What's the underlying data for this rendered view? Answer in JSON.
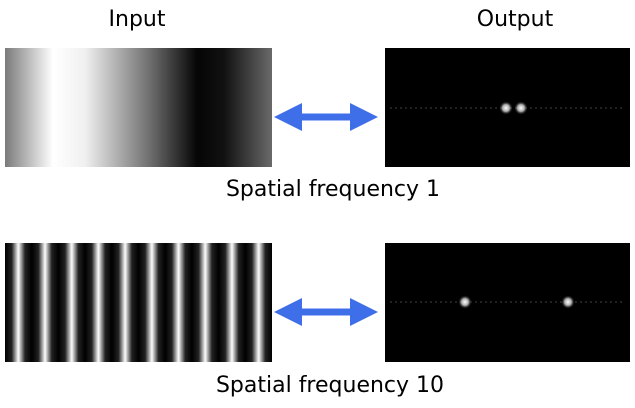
{
  "header": {
    "input": "Input",
    "output": "Output"
  },
  "rows": [
    {
      "caption": "Spatial frequency 1"
    },
    {
      "caption": "Spatial frequency 10"
    }
  ]
}
